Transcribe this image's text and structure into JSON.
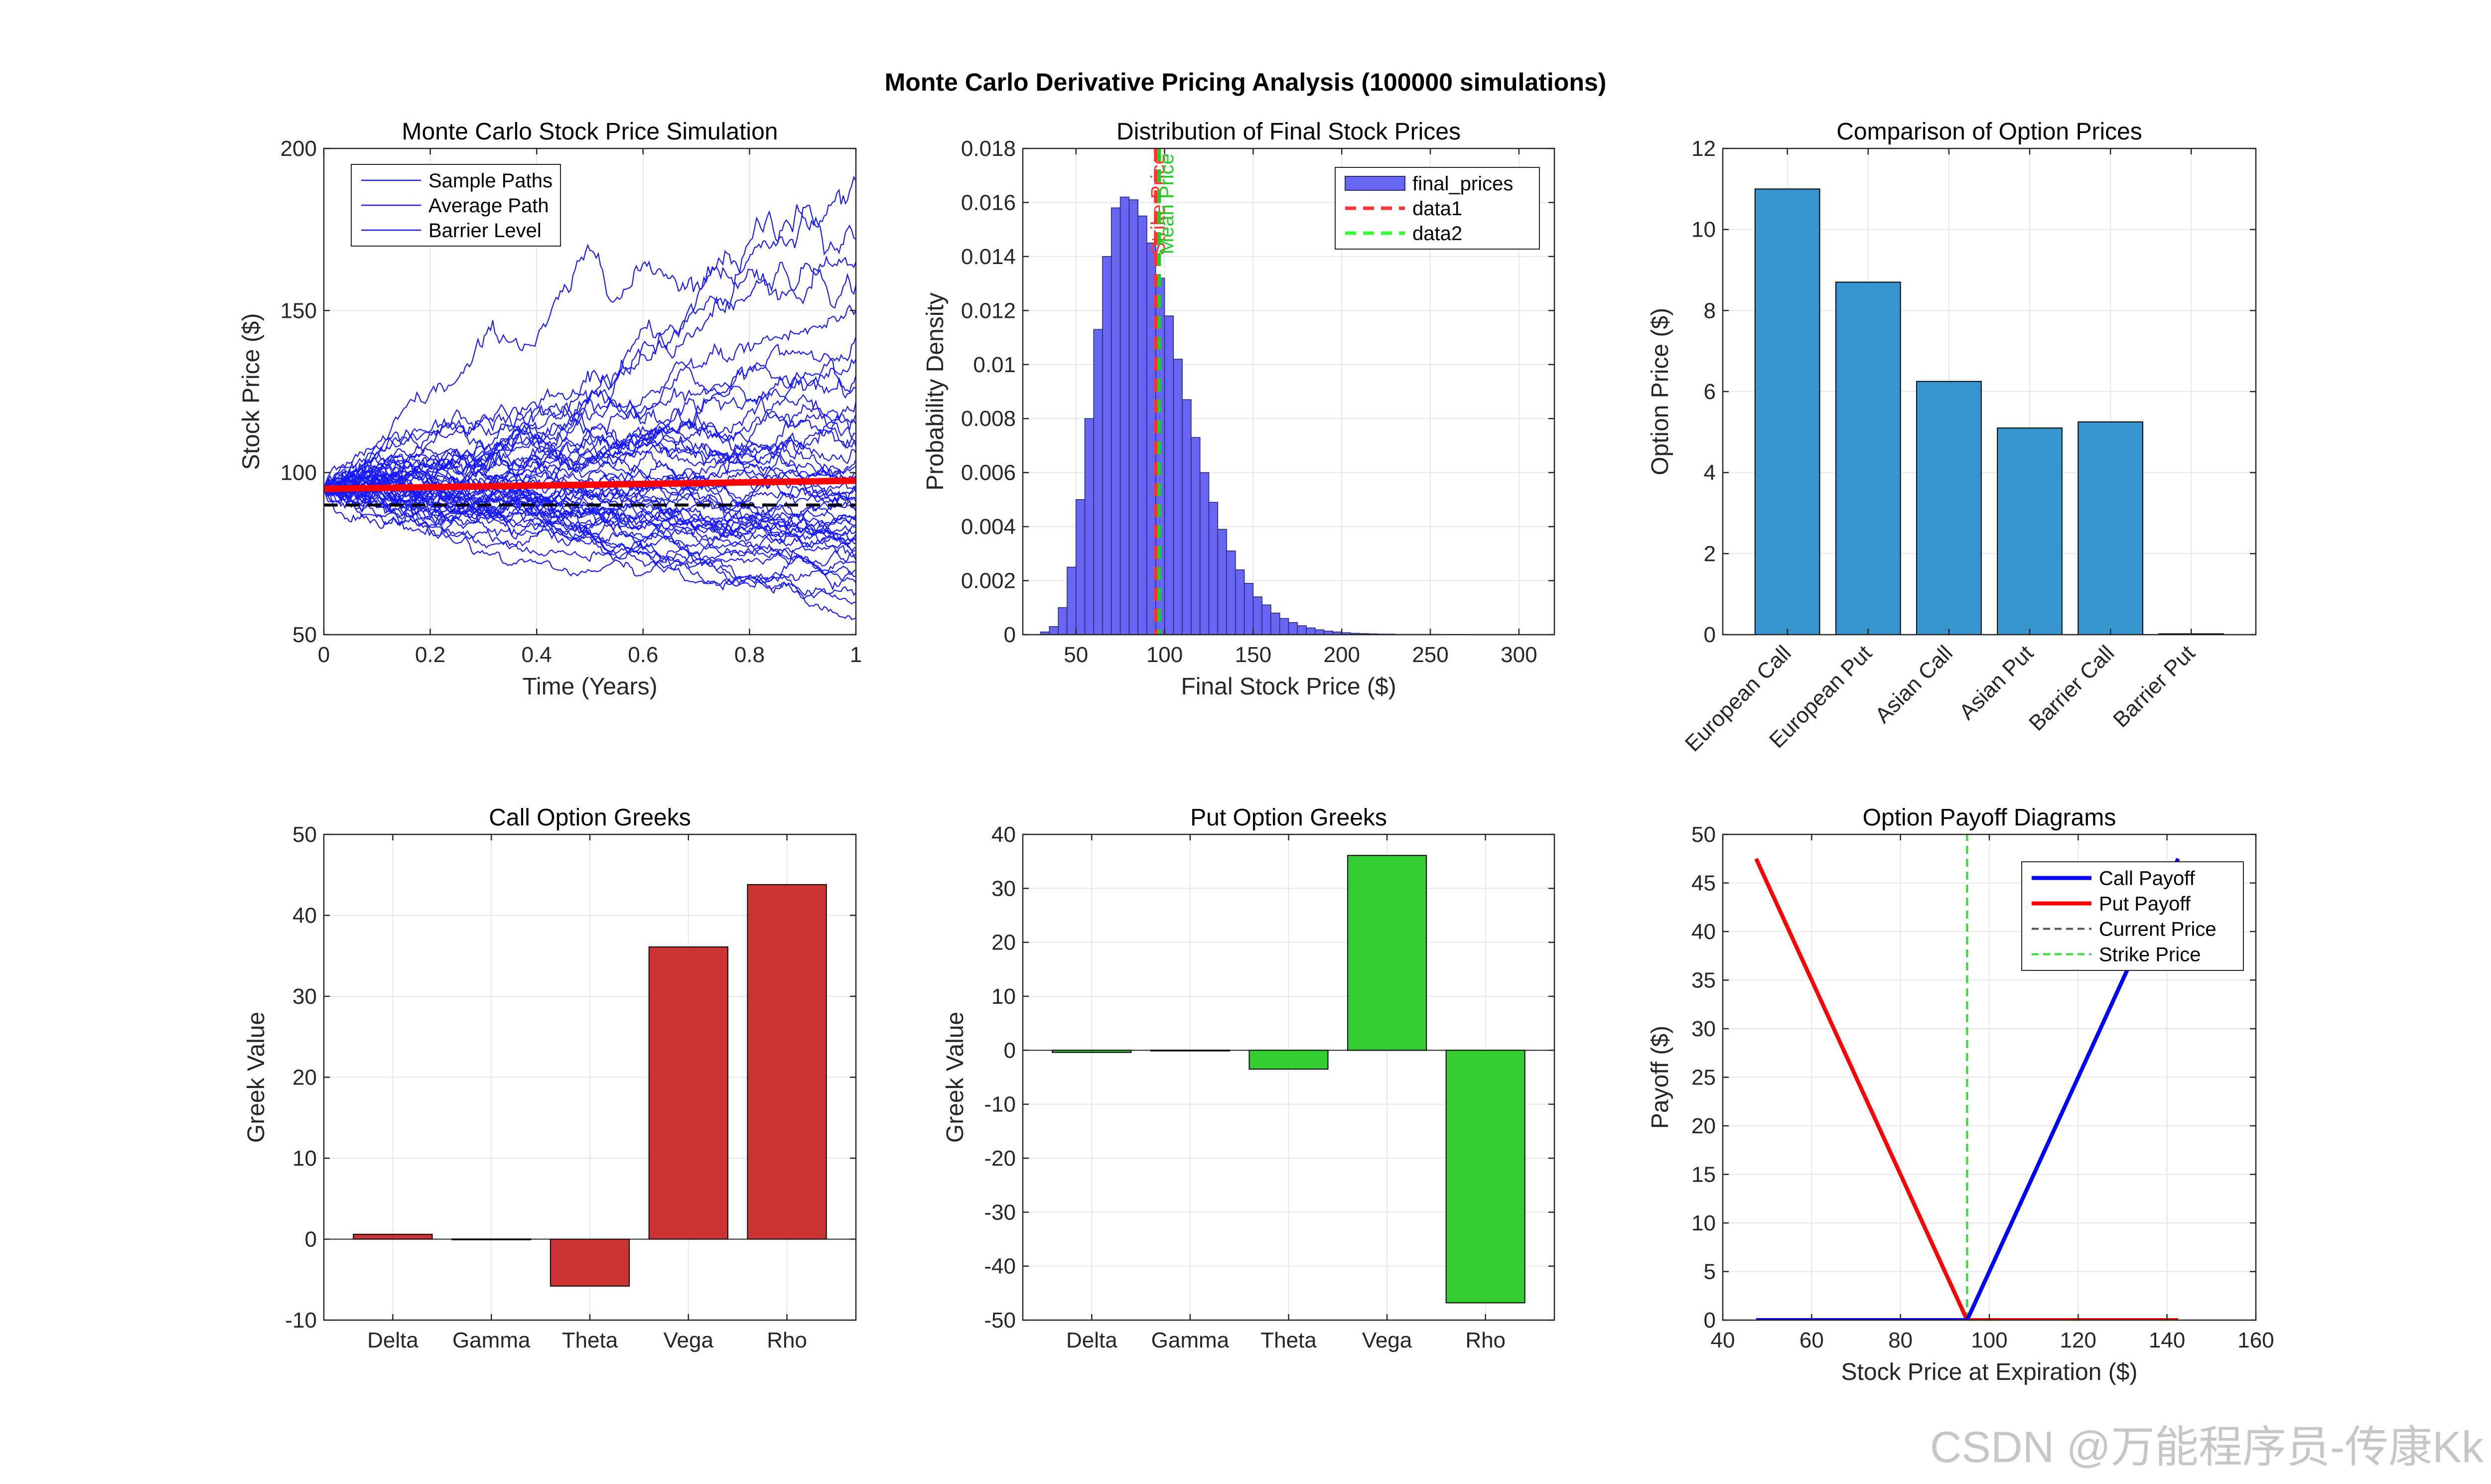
{
  "figure": {
    "title": "Monte Carlo Derivative Pricing Analysis (100000 simulations)",
    "watermark": "CSDN @万能程序员-传康Kk"
  },
  "colors": {
    "path_blue": "#1a1aff",
    "avg_red": "#ff0000",
    "barrier_black": "#000000",
    "hist_fill": "#6666f2",
    "hist_edge": "#2a2a7a",
    "strike_red": "#ff3333",
    "mean_green": "#22cc22",
    "option_bar": "#3597cd",
    "call_greek_bar": "#cc3333",
    "put_greek_bar": "#33cc33",
    "grid": "#e6e6e6",
    "axis": "#262626"
  },
  "chart_data": [
    {
      "id": "sim",
      "type": "line",
      "title": "Monte Carlo Stock Price Simulation",
      "xlabel": "Time (Years)",
      "ylabel": "Stock Price ($)",
      "xlim": [
        0,
        1
      ],
      "ylim": [
        50,
        200
      ],
      "xticks": [
        0,
        0.2,
        0.4,
        0.6,
        0.8,
        1
      ],
      "xtick_labels": [
        "0",
        "0.2",
        "0.4",
        "0.6",
        "0.8",
        "1"
      ],
      "yticks": [
        50,
        100,
        150,
        200
      ],
      "ytick_labels": [
        "50",
        "100",
        "150",
        "200"
      ],
      "grid": true,
      "n_sample_paths": 50,
      "start_price": 95,
      "sample_path_final_values": [
        190,
        172,
        165,
        158,
        150,
        142,
        135,
        130,
        126,
        122,
        118,
        115,
        112,
        110,
        108,
        106,
        104,
        102,
        100,
        99,
        97,
        96,
        95,
        94,
        92,
        91,
        90,
        89,
        88,
        87,
        86,
        85,
        84,
        83,
        82,
        81,
        80,
        79,
        78,
        77,
        76,
        75,
        73,
        72,
        70,
        68,
        66,
        63,
        60,
        55
      ],
      "average_path": {
        "x": [
          0,
          1
        ],
        "y": [
          95,
          97.5
        ]
      },
      "barrier_level": 90,
      "legend": [
        "Sample Paths",
        "Average Path",
        "Barrier Level"
      ],
      "legend_location": "top-left"
    },
    {
      "id": "hist",
      "type": "bar",
      "title": "Distribution of Final Stock Prices",
      "xlabel": "Final Stock Price ($)",
      "ylabel": "Probability Density",
      "xlim": [
        20,
        320
      ],
      "ylim": [
        0,
        0.018
      ],
      "xticks": [
        50,
        100,
        150,
        200,
        250,
        300
      ],
      "xtick_labels": [
        "50",
        "100",
        "150",
        "200",
        "250",
        "300"
      ],
      "yticks": [
        0,
        0.002,
        0.004,
        0.006,
        0.008,
        0.01,
        0.012,
        0.014,
        0.016,
        0.018
      ],
      "ytick_labels": [
        "0",
        "0.002",
        "0.004",
        "0.006",
        "0.008",
        "0.01",
        "0.012",
        "0.014",
        "0.016",
        "0.018"
      ],
      "grid": true,
      "bin_start": 30,
      "bin_width": 5,
      "densities": [
        0.0001,
        0.0003,
        0.001,
        0.0025,
        0.005,
        0.008,
        0.0113,
        0.014,
        0.0158,
        0.0162,
        0.0161,
        0.0155,
        0.0145,
        0.0132,
        0.0118,
        0.0102,
        0.0087,
        0.0073,
        0.006,
        0.0049,
        0.0039,
        0.0031,
        0.0024,
        0.0019,
        0.0014,
        0.0011,
        0.0008,
        0.0006,
        0.00045,
        0.00033,
        0.00025,
        0.00018,
        0.00013,
        0.0001,
        7e-05,
        5e-05,
        4e-05,
        3e-05,
        2e-05,
        2e-05,
        1e-05,
        1e-05,
        1e-05,
        1e-05,
        1e-05,
        5e-06,
        5e-06,
        5e-06,
        3e-06,
        3e-06,
        2e-06,
        2e-06,
        1e-06,
        1e-06,
        1e-06,
        1e-06
      ],
      "vlines": [
        {
          "x": 95,
          "label": "Strike Price",
          "color": "#ff3333"
        },
        {
          "x": 97,
          "label": "Mean Price",
          "color": "#22cc22"
        }
      ],
      "legend": [
        "final_prices",
        "data1",
        "data2"
      ],
      "legend_location": "top-right"
    },
    {
      "id": "options",
      "type": "bar",
      "title": "Comparison of Option Prices",
      "xlabel": "",
      "ylabel": "Option Price ($)",
      "ylim": [
        0,
        12
      ],
      "yticks": [
        0,
        2,
        4,
        6,
        8,
        10,
        12
      ],
      "ytick_labels": [
        "0",
        "2",
        "4",
        "6",
        "8",
        "10",
        "12"
      ],
      "categories": [
        "European Call",
        "European Put",
        "Asian Call",
        "Asian Put",
        "Barrier Call",
        "Barrier Put"
      ],
      "values": [
        11.0,
        8.7,
        6.25,
        5.1,
        5.25,
        0.02
      ],
      "grid": true
    },
    {
      "id": "call_greeks",
      "type": "bar",
      "title": "Call Option Greeks",
      "xlabel": "",
      "ylabel": "Greek Value",
      "ylim": [
        -10,
        50
      ],
      "yticks": [
        -10,
        0,
        10,
        20,
        30,
        40,
        50
      ],
      "ytick_labels": [
        "-10",
        "0",
        "10",
        "20",
        "30",
        "40",
        "50"
      ],
      "categories": [
        "Delta",
        "Gamma",
        "Theta",
        "Vega",
        "Rho"
      ],
      "values": [
        0.6,
        0.02,
        -5.8,
        36.1,
        43.8
      ],
      "grid": true
    },
    {
      "id": "put_greeks",
      "type": "bar",
      "title": "Put Option Greeks",
      "xlabel": "",
      "ylabel": "Greek Value",
      "ylim": [
        -50,
        40
      ],
      "yticks": [
        -50,
        -40,
        -30,
        -20,
        -10,
        0,
        10,
        20,
        30,
        40
      ],
      "ytick_labels": [
        "-50",
        "-40",
        "-30",
        "-20",
        "-10",
        "0",
        "10",
        "20",
        "30",
        "40"
      ],
      "categories": [
        "Delta",
        "Gamma",
        "Theta",
        "Vega",
        "Rho"
      ],
      "values": [
        -0.4,
        0.02,
        -3.5,
        36.1,
        -46.8
      ],
      "grid": true
    },
    {
      "id": "payoff",
      "type": "line",
      "title": "Option Payoff Diagrams",
      "xlabel": "Stock Price at Expiration ($)",
      "ylabel": "Payoff ($)",
      "xlim": [
        40,
        160
      ],
      "ylim": [
        0,
        50
      ],
      "xticks": [
        40,
        60,
        80,
        100,
        120,
        140,
        160
      ],
      "xtick_labels": [
        "40",
        "60",
        "80",
        "100",
        "120",
        "140",
        "160"
      ],
      "yticks": [
        0,
        5,
        10,
        15,
        20,
        25,
        30,
        35,
        40,
        45,
        50
      ],
      "ytick_labels": [
        "0",
        "5",
        "10",
        "15",
        "20",
        "25",
        "30",
        "35",
        "40",
        "45",
        "50"
      ],
      "grid": true,
      "series": [
        {
          "name": "Call Payoff",
          "x": [
            47.5,
            95,
            142.5
          ],
          "y": [
            0,
            0,
            47.5
          ],
          "color": "#0000ff",
          "style": "solid"
        },
        {
          "name": "Put Payoff",
          "x": [
            47.5,
            95,
            142.5
          ],
          "y": [
            47.5,
            0,
            0
          ],
          "color": "#ff0000",
          "style": "solid"
        },
        {
          "name": "Current Price",
          "x": [
            95,
            95
          ],
          "y": [
            0,
            50
          ],
          "color": "#555555",
          "style": "dashed"
        },
        {
          "name": "Strike Price",
          "x": [
            95,
            95
          ],
          "y": [
            0,
            50
          ],
          "color": "#33dd33",
          "style": "dashed"
        }
      ],
      "legend_location": "top-right"
    }
  ]
}
